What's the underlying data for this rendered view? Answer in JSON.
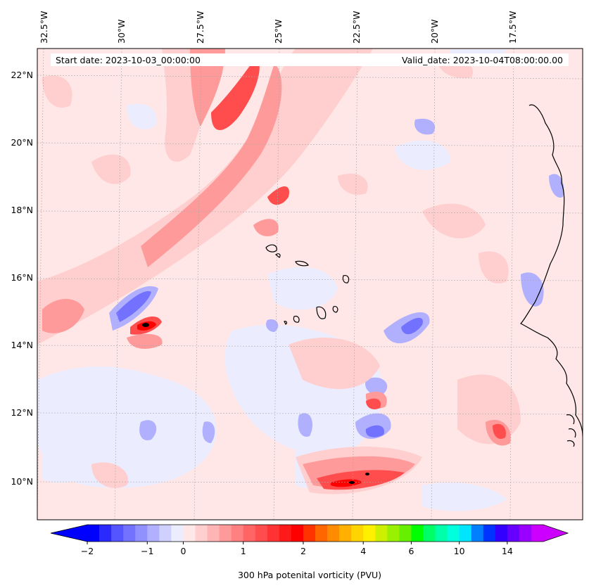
{
  "map": {
    "start_date": "Start date: 2023-10-03_00:00:00",
    "valid_date": "Valid_date: 2023-10-04T08:00:00.00",
    "lon_labels": [
      "32.5°W",
      "30°W",
      "27.5°W",
      "25°W",
      "22.5°W",
      "20°W",
      "17.5°W"
    ],
    "lat_labels": [
      "22°N",
      "20°N",
      "18°N",
      "16°N",
      "14°N",
      "12°N",
      "10°N"
    ],
    "background_color": "#ffe7e7",
    "coastline_color": "#000000"
  },
  "colorbar": {
    "label": "300 hPa potenital vorticity (PVU)",
    "tick_labels": [
      "−2",
      "−1",
      "0",
      "1",
      "2",
      "4",
      "6",
      "10",
      "14"
    ],
    "tick_values": [
      -2,
      -1,
      0,
      1,
      2,
      4,
      6,
      10,
      14
    ],
    "colors": [
      "#0000ff",
      "#2a2aff",
      "#5555ff",
      "#7272ff",
      "#9090ff",
      "#b0b0ff",
      "#d0d0ff",
      "#ececff",
      "#ffe7e7",
      "#ffcfcf",
      "#ffb5b5",
      "#ff9a9a",
      "#ff8080",
      "#ff6565",
      "#ff4d4d",
      "#ff3333",
      "#ff1a1a",
      "#ff0000",
      "#ff3300",
      "#ff6600",
      "#ff8c00",
      "#ffb000",
      "#ffd400",
      "#fff000",
      "#ccf000",
      "#99f000",
      "#66f000",
      "#00ff00",
      "#00ff66",
      "#00ffaa",
      "#00ffdd",
      "#00e5ff",
      "#0080ff",
      "#0033ff",
      "#3300ff",
      "#6600ff",
      "#9900ff",
      "#cc00ff"
    ],
    "under_color": "#0000ff",
    "over_color": "#cc00ff"
  }
}
